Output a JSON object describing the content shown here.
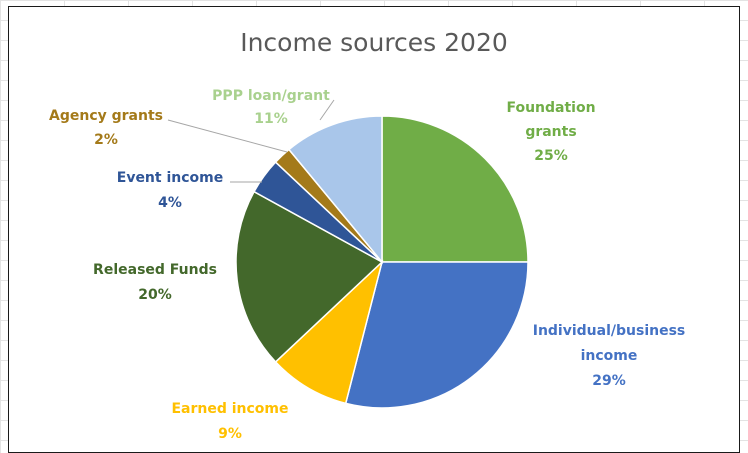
{
  "chart_data": {
    "type": "pie",
    "title": "Income sources 2020",
    "slices": [
      {
        "label": "Foundation grants",
        "label_lines": [
          "Foundation",
          "grants"
        ],
        "value": 25,
        "pct_label": "25%",
        "color": "#70AD47",
        "text_color": "#70AD47"
      },
      {
        "label": "Individual/business income",
        "label_lines": [
          "Individual/business",
          "income"
        ],
        "value": 29,
        "pct_label": "29%",
        "color": "#4472C4",
        "text_color": "#4472C4"
      },
      {
        "label": "Earned income",
        "label_lines": [
          "Earned income"
        ],
        "value": 9,
        "pct_label": "9%",
        "color": "#FFC000",
        "text_color": "#FFC000"
      },
      {
        "label": "Released Funds",
        "label_lines": [
          "Released Funds"
        ],
        "value": 20,
        "pct_label": "20%",
        "color": "#43682B",
        "text_color": "#43682B"
      },
      {
        "label": "Event income",
        "label_lines": [
          "Event income"
        ],
        "value": 4,
        "pct_label": "4%",
        "color": "#2F5597",
        "text_color": "#2F5597"
      },
      {
        "label": "Agency grants",
        "label_lines": [
          "Agency grants"
        ],
        "value": 2,
        "pct_label": "2%",
        "color": "#A47A1A",
        "text_color": "#A47A1A"
      },
      {
        "label": "PPP loan/grant",
        "label_lines": [
          "PPP loan/grant"
        ],
        "value": 11,
        "pct_label": "11%",
        "color": "#A9C6EA",
        "text_color": "#A9D18E"
      }
    ]
  }
}
